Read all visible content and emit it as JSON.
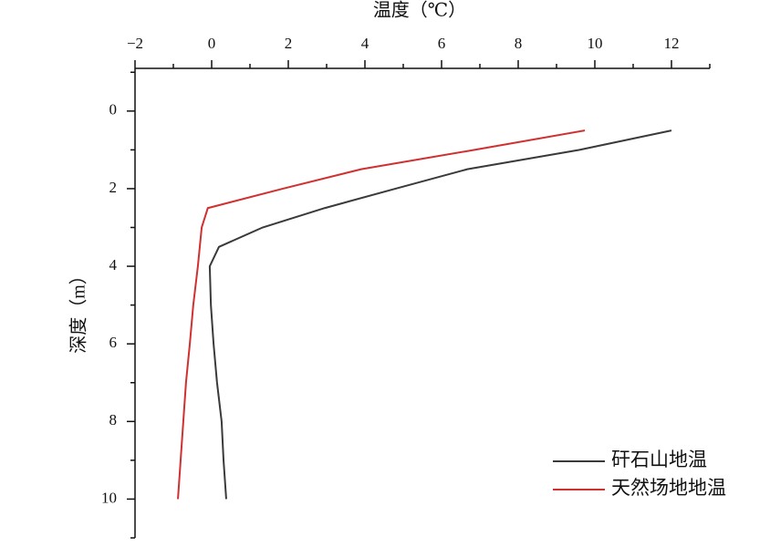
{
  "chart_data": {
    "type": "line",
    "xlabel": "温度（℃）",
    "ylabel": "深度（m）",
    "y": [
      0.5,
      1.0,
      1.5,
      2.0,
      2.5,
      3.0,
      3.5,
      4.0,
      5.0,
      6.0,
      7.0,
      8.0,
      9.0,
      10.0
    ],
    "series": [
      {
        "name": "矸石山地温",
        "color": "#3a3a3a",
        "values": [
          12.0,
          9.6,
          6.67,
          4.8,
          2.95,
          1.33,
          0.19,
          -0.05,
          -0.02,
          0.05,
          0.14,
          0.26,
          0.31,
          0.38
        ]
      },
      {
        "name": "天然场地地温",
        "color": "#d03030",
        "values": [
          9.74,
          6.86,
          3.9,
          1.86,
          -0.1,
          -0.26,
          -0.31,
          -0.36,
          -0.48,
          -0.57,
          -0.67,
          -0.74,
          -0.81,
          -0.88
        ]
      }
    ],
    "xlim": [
      -2,
      13
    ],
    "xticks": [
      {
        "value": -2,
        "label": "−2"
      },
      0,
      2,
      4,
      6,
      8,
      10,
      12
    ],
    "xminorticks": [
      -1,
      1,
      3,
      5,
      7,
      9,
      11,
      13
    ],
    "ylim": [
      -1.1,
      11
    ],
    "yticks": [
      0,
      2,
      4,
      6,
      8,
      10
    ],
    "yminorticks": [
      -1,
      1,
      3,
      5,
      7,
      9,
      11
    ],
    "y_inverted": true,
    "x_axis_position": "top",
    "legend": "lower right"
  }
}
